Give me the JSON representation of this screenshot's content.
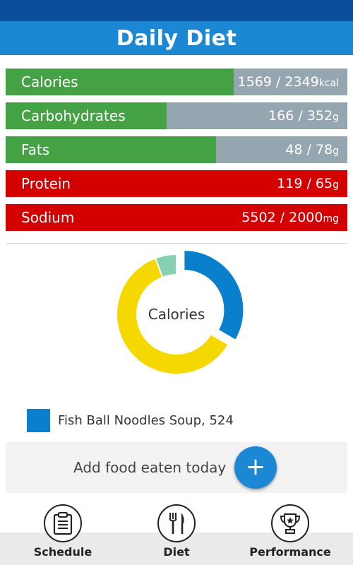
{
  "header": {
    "title": "Daily Diet"
  },
  "colors": {
    "good": "#44a244",
    "over": "#d40000",
    "track": "#95a6b0",
    "accent": "#1c87d3"
  },
  "nutrients": [
    {
      "label": "Calories",
      "consumed": "1569",
      "sep": " / ",
      "target": "2349",
      "unit": "kcal",
      "fill_fraction": 0.668,
      "status": "good"
    },
    {
      "label": "Carbohydrates",
      "consumed": "166",
      "sep": " / ",
      "target": "352",
      "unit": "g",
      "fill_fraction": 0.472,
      "status": "good"
    },
    {
      "label": "Fats",
      "consumed": "48",
      "sep": " / ",
      "target": "78",
      "unit": "g",
      "fill_fraction": 0.615,
      "status": "good"
    },
    {
      "label": "Protein",
      "consumed": "119",
      "sep": " / ",
      "target": "65",
      "unit": "g",
      "fill_fraction": 1.0,
      "status": "over"
    },
    {
      "label": "Sodium",
      "consumed": "5502",
      "sep": " / ",
      "target": "2000",
      "unit": "mg",
      "fill_fraction": 1.0,
      "status": "over"
    }
  ],
  "donut": {
    "center_label": "Calories",
    "segments": [
      {
        "name": "Fish Ball Noodles Soup",
        "value": 524,
        "color": "#0a7fcc",
        "exploded": true
      },
      {
        "name": "",
        "value": 955,
        "color": "#f4d800",
        "exploded": false
      },
      {
        "name": "",
        "value": 90,
        "color": "#86cfb0",
        "exploded": false
      }
    ]
  },
  "legend": {
    "text": "Fish Ball Noodles Soup, 524",
    "color": "#0a7fcc"
  },
  "add_food": {
    "label": "Add food eaten today",
    "button_icon": "+"
  },
  "nav": [
    {
      "label": "Schedule",
      "icon": "clipboard-icon"
    },
    {
      "label": "Diet",
      "icon": "fork-knife-icon"
    },
    {
      "label": "Performance",
      "icon": "trophy-icon"
    }
  ]
}
